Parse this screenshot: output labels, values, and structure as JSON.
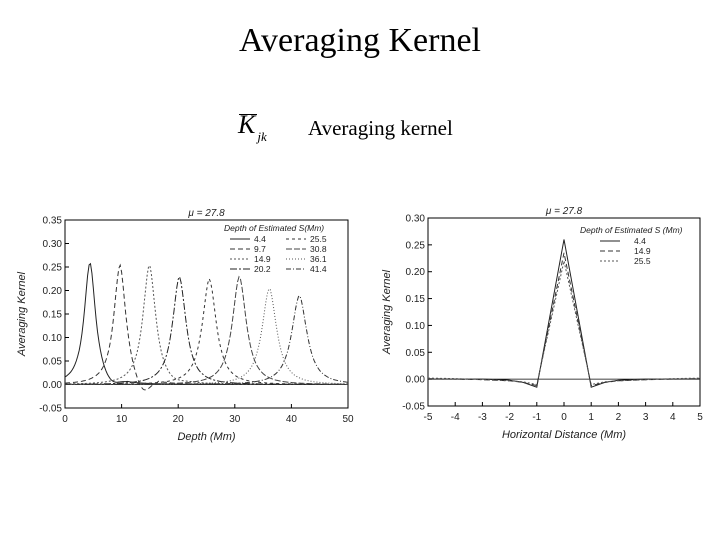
{
  "slide": {
    "title": "Averaging Kernel",
    "symbol": "K",
    "symbol_sub": "jk",
    "description": "Averaging kernel"
  },
  "chart_data": [
    {
      "type": "line",
      "title": "μ = 27.8",
      "xlabel": "Depth (Mm)",
      "ylabel": "Averaging Kernel",
      "xlim": [
        0,
        50
      ],
      "ylim": [
        -0.05,
        0.35
      ],
      "xticks": [
        0,
        10,
        20,
        30,
        40,
        50
      ],
      "yticks": [
        -0.05,
        0.0,
        0.05,
        0.1,
        0.15,
        0.2,
        0.25,
        0.3,
        0.35
      ],
      "ytick_labels": [
        "-0.05",
        "0.00",
        "0.05",
        "0.10",
        "0.15",
        "0.20",
        "0.25",
        "0.30",
        "0.35"
      ],
      "legend_title": "Depth of Estimated S(Mm)",
      "legend_position": "top-right",
      "series": [
        {
          "name": "4.4",
          "peak_x": 4.4,
          "peak_y": 0.26,
          "width": 1.6,
          "dip": -0.012
        },
        {
          "name": "9.7",
          "peak_x": 9.7,
          "peak_y": 0.255,
          "width": 1.7,
          "dip": -0.03
        },
        {
          "name": "14.9",
          "peak_x": 14.9,
          "peak_y": 0.255,
          "width": 1.8,
          "dip": -0.005
        },
        {
          "name": "20.2",
          "peak_x": 20.2,
          "peak_y": 0.23,
          "width": 1.9,
          "dip": 0.0
        },
        {
          "name": "25.5",
          "peak_x": 25.5,
          "peak_y": 0.225,
          "width": 2.0,
          "dip": 0.0
        },
        {
          "name": "30.8",
          "peak_x": 30.8,
          "peak_y": 0.23,
          "width": 2.0,
          "dip": 0.0
        },
        {
          "name": "36.1",
          "peak_x": 36.1,
          "peak_y": 0.205,
          "width": 2.1,
          "dip": 0.0
        },
        {
          "name": "41.4",
          "peak_x": 41.4,
          "peak_y": 0.19,
          "width": 2.2,
          "dip": 0.0
        }
      ]
    },
    {
      "type": "line",
      "title": "μ = 27.8",
      "xlabel": "Horizontal Distance (Mm)",
      "ylabel": "Averaging Kernel",
      "xlim": [
        -5,
        5
      ],
      "ylim": [
        -0.05,
        0.3
      ],
      "xticks": [
        -5,
        -4,
        -3,
        -2,
        -1,
        0,
        1,
        2,
        3,
        4,
        5
      ],
      "yticks": [
        -0.05,
        0.0,
        0.05,
        0.1,
        0.15,
        0.2,
        0.25,
        0.3
      ],
      "ytick_labels": [
        "-0.05",
        "0.00",
        "0.05",
        "0.10",
        "0.15",
        "0.20",
        "0.25",
        "0.30"
      ],
      "legend_title": "Depth of Estimated S (Mm)",
      "legend_position": "top-right",
      "series": [
        {
          "name": "4.4",
          "x": [
            -5,
            -4,
            -3,
            -2,
            -1.5,
            -1,
            0,
            1,
            1.5,
            2,
            3,
            4,
            5
          ],
          "y": [
            0.0,
            0.0,
            0.0,
            -0.002,
            -0.006,
            -0.015,
            0.26,
            -0.015,
            -0.006,
            -0.002,
            0.0,
            0.0,
            0.0
          ]
        },
        {
          "name": "14.9",
          "x": [
            -5,
            -4,
            -3,
            -2,
            -1.5,
            -1,
            0,
            1,
            1.5,
            2,
            3,
            4,
            5
          ],
          "y": [
            0.001,
            0.0,
            -0.001,
            -0.003,
            -0.006,
            -0.012,
            0.235,
            -0.012,
            -0.006,
            -0.003,
            -0.001,
            0.0,
            0.001
          ]
        },
        {
          "name": "25.5",
          "x": [
            -5,
            -4,
            -3,
            -2,
            -1.5,
            -1,
            0,
            1,
            1.5,
            2,
            3,
            4,
            5
          ],
          "y": [
            0.002,
            0.001,
            -0.001,
            -0.003,
            -0.005,
            -0.01,
            0.22,
            -0.01,
            -0.005,
            -0.003,
            -0.001,
            0.001,
            0.002
          ]
        }
      ]
    }
  ]
}
